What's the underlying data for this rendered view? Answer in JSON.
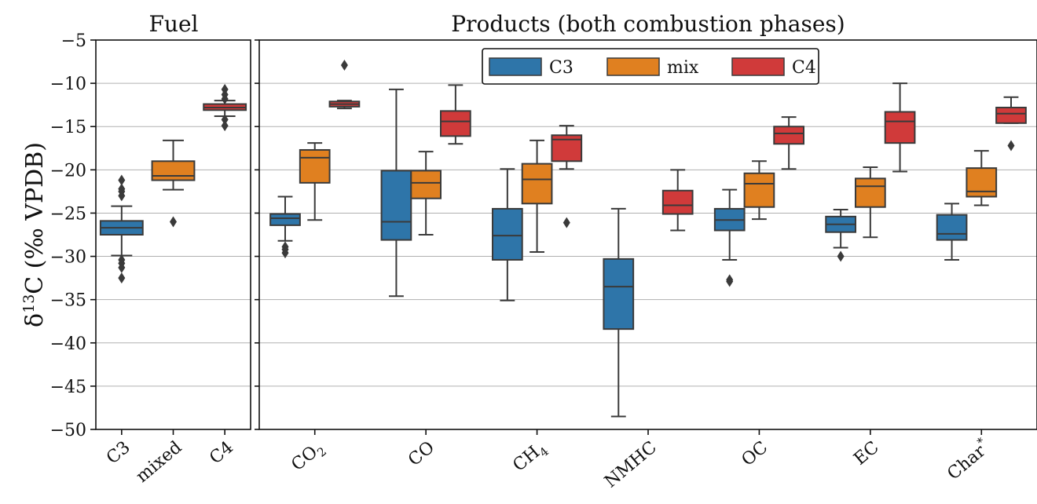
{
  "chart_data": [
    {
      "type": "box",
      "title": "Fuel",
      "ylabel_main": "δ",
      "ylabel_sup": "13",
      "ylabel_rest": "C (‰ VPDB)",
      "ylim": [
        -50,
        -5
      ],
      "yticks": [
        -5,
        -10,
        -15,
        -20,
        -25,
        -30,
        -35,
        -40,
        -45,
        -50
      ],
      "ytick_labels": [
        "−5",
        "−10",
        "−15",
        "−20",
        "−25",
        "−30",
        "−35",
        "−40",
        "−45",
        "−50"
      ],
      "grid": true,
      "categories": [
        "C3",
        "mixed",
        "C4"
      ],
      "boxes": [
        {
          "category": "C3",
          "series": "C3",
          "color": "#2E75A9",
          "q1": -27.5,
          "median": -26.7,
          "q3": -25.9,
          "whislo": -29.9,
          "whishi": -24.2,
          "fliers": [
            -21.2,
            -22.2,
            -22.5,
            -23.0,
            -30.4,
            -30.8,
            -31.3,
            -32.5
          ]
        },
        {
          "category": "mixed",
          "series": "mix",
          "color": "#E08020",
          "q1": -21.2,
          "median": -20.7,
          "q3": -19.0,
          "whislo": -22.3,
          "whishi": -16.6,
          "fliers": [
            -26.0
          ]
        },
        {
          "category": "C4",
          "series": "C4",
          "color": "#D03A3A",
          "q1": -13.1,
          "median": -12.8,
          "q3": -12.4,
          "whislo": -13.8,
          "whishi": -12.0,
          "fliers": [
            -10.7,
            -11.3,
            -11.8,
            -14.2,
            -14.9
          ]
        }
      ]
    },
    {
      "type": "box",
      "title": "Products (both combustion phases)",
      "ylim": [
        -50,
        -5
      ],
      "grid": true,
      "categories": [
        {
          "label": "CO",
          "sub": "2",
          "sup": ""
        },
        {
          "label": "CO",
          "sub": "",
          "sup": ""
        },
        {
          "label": "CH",
          "sub": "4",
          "sup": ""
        },
        {
          "label": "NMHC",
          "sub": "",
          "sup": ""
        },
        {
          "label": "OC",
          "sub": "",
          "sup": ""
        },
        {
          "label": "EC",
          "sub": "",
          "sup": ""
        },
        {
          "label": "Char",
          "sub": "",
          "sup": "*"
        }
      ],
      "legend": {
        "position": "top-center",
        "entries": [
          {
            "name": "C3",
            "color": "#2E75A9"
          },
          {
            "name": "mix",
            "color": "#E08020"
          },
          {
            "name": "C4",
            "color": "#D03A3A"
          }
        ]
      },
      "series": [
        {
          "name": "C3",
          "color": "#2E75A9",
          "boxes": [
            {
              "group": 0,
              "q1": -26.4,
              "median": -25.6,
              "q3": -25.1,
              "whislo": -28.2,
              "whishi": -23.1,
              "fliers": [
                -28.9,
                -29.2,
                -29.6
              ]
            },
            {
              "group": 1,
              "q1": -28.1,
              "median": -26.0,
              "q3": -20.1,
              "whislo": -34.6,
              "whishi": -10.7,
              "fliers": []
            },
            {
              "group": 2,
              "q1": -30.4,
              "median": -27.6,
              "q3": -24.5,
              "whislo": -35.1,
              "whishi": -19.9,
              "fliers": []
            },
            {
              "group": 3,
              "q1": -38.4,
              "median": -33.5,
              "q3": -30.3,
              "whislo": -48.5,
              "whishi": -24.5,
              "fliers": []
            },
            {
              "group": 4,
              "q1": -27.0,
              "median": -25.8,
              "q3": -24.5,
              "whislo": -30.4,
              "whishi": -22.3,
              "fliers": [
                -32.7,
                -32.9
              ]
            },
            {
              "group": 5,
              "q1": -27.2,
              "median": -26.3,
              "q3": -25.4,
              "whislo": -29.0,
              "whishi": -24.6,
              "fliers": [
                -30.0
              ]
            },
            {
              "group": 6,
              "q1": -28.1,
              "median": -27.4,
              "q3": -25.2,
              "whislo": -30.4,
              "whishi": -23.9,
              "fliers": []
            }
          ]
        },
        {
          "name": "mix",
          "color": "#E08020",
          "boxes": [
            {
              "group": 0,
              "q1": -21.5,
              "median": -18.6,
              "q3": -17.7,
              "whislo": -25.8,
              "whishi": -16.9,
              "fliers": []
            },
            {
              "group": 1,
              "q1": -23.3,
              "median": -21.5,
              "q3": -20.1,
              "whislo": -27.5,
              "whishi": -17.9,
              "fliers": []
            },
            {
              "group": 2,
              "q1": -23.9,
              "median": -21.1,
              "q3": -19.3,
              "whislo": -29.5,
              "whishi": -16.6,
              "fliers": []
            },
            {
              "group": 4,
              "q1": -24.3,
              "median": -21.6,
              "q3": -20.4,
              "whislo": -25.7,
              "whishi": -19.0,
              "fliers": []
            },
            {
              "group": 5,
              "q1": -24.3,
              "median": -21.9,
              "q3": -21.0,
              "whislo": -27.8,
              "whishi": -19.7,
              "fliers": []
            },
            {
              "group": 6,
              "q1": -23.1,
              "median": -22.5,
              "q3": -19.8,
              "whislo": -24.1,
              "whishi": -17.8,
              "fliers": []
            }
          ]
        },
        {
          "name": "C4",
          "color": "#D03A3A",
          "boxes": [
            {
              "group": 0,
              "q1": -12.7,
              "median": -12.4,
              "q3": -12.1,
              "whislo": -12.9,
              "whishi": -12.0,
              "fliers": [
                -7.9
              ]
            },
            {
              "group": 1,
              "q1": -16.1,
              "median": -14.4,
              "q3": -13.2,
              "whislo": -17.0,
              "whishi": -10.2,
              "fliers": []
            },
            {
              "group": 2,
              "q1": -19.0,
              "median": -16.5,
              "q3": -16.0,
              "whislo": -19.9,
              "whishi": -14.9,
              "fliers": [
                -26.1
              ]
            },
            {
              "group": 3,
              "q1": -25.1,
              "median": -24.1,
              "q3": -22.4,
              "whislo": -27.0,
              "whishi": -20.0,
              "fliers": []
            },
            {
              "group": 4,
              "q1": -17.0,
              "median": -15.8,
              "q3": -15.0,
              "whislo": -19.9,
              "whishi": -13.9,
              "fliers": []
            },
            {
              "group": 5,
              "q1": -16.9,
              "median": -14.4,
              "q3": -13.3,
              "whislo": -20.2,
              "whishi": -10.0,
              "fliers": []
            },
            {
              "group": 6,
              "q1": -14.6,
              "median": -13.5,
              "q3": -12.8,
              "whislo": -14.6,
              "whishi": -11.6,
              "fliers": [
                -17.2
              ]
            }
          ]
        }
      ]
    }
  ]
}
